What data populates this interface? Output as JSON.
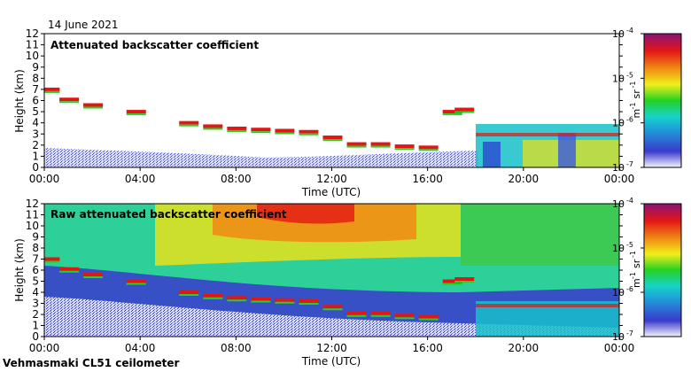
{
  "date": "14 June 2021",
  "footer": "Vehmasmaki CL51 ceilometer",
  "colorbar": {
    "min_exp": -7,
    "max_exp": -4,
    "tick_labels": [
      "10",
      "10",
      "10",
      "10"
    ],
    "tick_exps": [
      "-4",
      "-5",
      "-6",
      "-7"
    ],
    "unit_m": "m",
    "unit_m_exp": "-1",
    "unit_sr": "sr",
    "unit_sr_exp": "-1",
    "colors": [
      "#f4f4fc",
      "#3a3acd",
      "#1f9bd8",
      "#16d3c9",
      "#23d223",
      "#f0ef1a",
      "#f08a14",
      "#e31616",
      "#8a1278"
    ]
  },
  "chart_data": [
    {
      "type": "heatmap",
      "title": "Attenuated backscatter coefficient",
      "xlabel": "Time (UTC)",
      "ylabel": "Height (km)",
      "xlim": [
        0,
        24
      ],
      "ylim": [
        0,
        12
      ],
      "x_tick_labels": [
        "00:00",
        "04:00",
        "08:00",
        "12:00",
        "16:00",
        "20:00",
        "00:00"
      ],
      "y_tick_labels": [
        "0",
        "1",
        "2",
        "3",
        "4",
        "5",
        "6",
        "7",
        "8",
        "9",
        "10",
        "11",
        "12"
      ],
      "log_scale_colorbar": true,
      "layers": [
        {
          "x": [
            0.2,
            1.0,
            2.0,
            3.8,
            6.0,
            7.0,
            8.0,
            9.0,
            10.0,
            11.0,
            12.0,
            13.0,
            14.0,
            15.0,
            16.0,
            17.0,
            17.5
          ],
          "y": [
            7.0,
            6.1,
            5.6,
            5.0,
            4.0,
            3.7,
            3.5,
            3.4,
            3.3,
            3.2,
            2.7,
            2.1,
            2.1,
            1.9,
            1.8,
            5.0,
            5.2
          ]
        }
      ]
    },
    {
      "type": "heatmap",
      "title": "Raw attenuated backscatter coefficient",
      "xlabel": "Time (UTC)",
      "ylabel": "Height (km)",
      "xlim": [
        0,
        24
      ],
      "ylim": [
        0,
        12
      ],
      "x_tick_labels": [
        "00:00",
        "04:00",
        "08:00",
        "12:00",
        "16:00",
        "20:00",
        "00:00"
      ],
      "y_tick_labels": [
        "0",
        "1",
        "2",
        "3",
        "4",
        "5",
        "6",
        "7",
        "8",
        "9",
        "10",
        "11",
        "12"
      ],
      "log_scale_colorbar": true
    }
  ]
}
